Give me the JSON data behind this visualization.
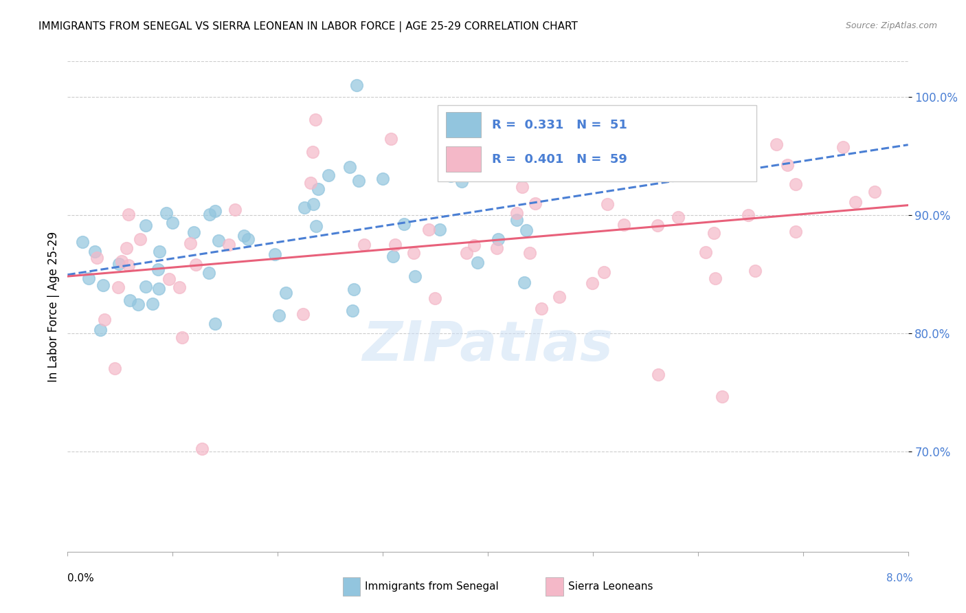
{
  "title": "IMMIGRANTS FROM SENEGAL VS SIERRA LEONEAN IN LABOR FORCE | AGE 25-29 CORRELATION CHART",
  "source": "Source: ZipAtlas.com",
  "ylabel": "In Labor Force | Age 25-29",
  "xlim": [
    0.0,
    0.08
  ],
  "ylim": [
    0.615,
    1.03
  ],
  "yticks": [
    0.7,
    0.8,
    0.9,
    1.0
  ],
  "ytick_labels": [
    "70.0%",
    "80.0%",
    "90.0%",
    "100.0%"
  ],
  "watermark_text": "ZIPatlas",
  "legend_label_senegal": "Immigrants from Senegal",
  "legend_label_sierra": "Sierra Leoneans",
  "senegal_color": "#92c5de",
  "sierra_color": "#f4b8c8",
  "line_senegal_color": "#4a7fd4",
  "line_sierra_color": "#e8607a",
  "R_senegal": 0.331,
  "N_senegal": 51,
  "R_sierra": 0.401,
  "N_sierra": 59
}
